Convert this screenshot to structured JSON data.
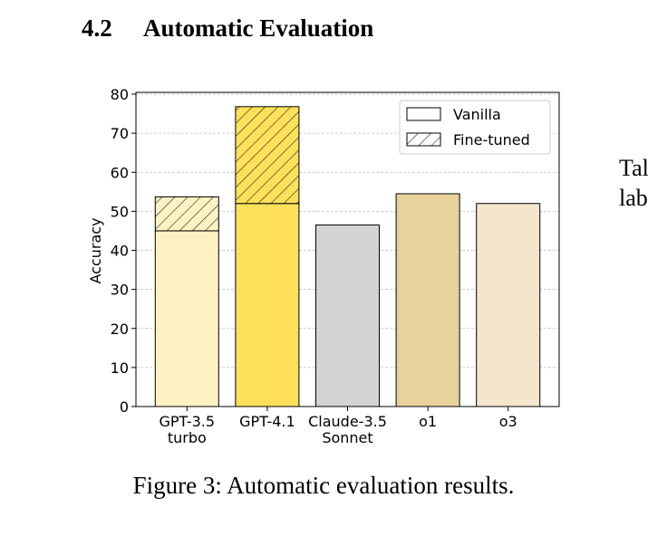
{
  "section": {
    "number": "4.2",
    "title": "Automatic Evaluation"
  },
  "side_text": [
    "Tal",
    "lab"
  ],
  "figure": {
    "caption": "Figure 3: Automatic evaluation results."
  },
  "chart_data": {
    "type": "stacked_bar",
    "ylabel": "Accuracy",
    "categories": [
      [
        "GPT-3.5",
        "turbo"
      ],
      [
        "GPT-4.1"
      ],
      [
        "Claude-3.5",
        "Sonnet"
      ],
      [
        "o1"
      ],
      [
        "o3"
      ]
    ],
    "bar_colors": [
      "#fff2c2",
      "#ffe05a",
      "#d3d3d3",
      "#e8d29c",
      "#f3e6cc"
    ],
    "series": [
      {
        "name": "Vanilla",
        "color": "#ffffff",
        "hatch": false,
        "values": [
          45,
          52,
          46.5,
          54.5,
          52
        ]
      },
      {
        "name": "Fine-tuned",
        "color": "#ffffff",
        "hatch": true,
        "values": [
          8.7,
          24.8,
          null,
          null,
          null
        ]
      }
    ],
    "ylim": [
      0,
      80
    ],
    "yticks": [
      0,
      10,
      20,
      30,
      40,
      50,
      60,
      70,
      80
    ],
    "grid": true,
    "legend": "upper right"
  }
}
